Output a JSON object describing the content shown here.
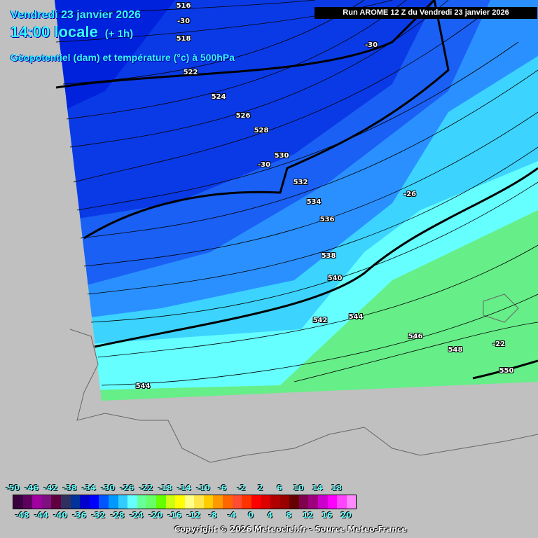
{
  "header": {
    "date": "Vendredi 23 janvier 2026",
    "time": "14:00 locale",
    "offset": "(+ 1h)",
    "parameter": "Géopotentiel (dam) et température (°c) à 500hPa",
    "run": "Run AROME 12 Z du Vendredi 23 janvier 2026"
  },
  "contour_labels": [
    "516",
    "518",
    "522",
    "524",
    "526",
    "528",
    "530",
    "532",
    "534",
    "536",
    "538",
    "540",
    "542",
    "544",
    "544",
    "546",
    "548",
    "550"
  ],
  "temp_labels": [
    "-30",
    "-30",
    "-30",
    "-26",
    "-22"
  ],
  "legend": {
    "top_labels": [
      "-50",
      "-46",
      "-42",
      "-38",
      "-34",
      "-30",
      "-26",
      "-22",
      "-18",
      "-14",
      "-10",
      "-6",
      "-2",
      "2",
      "6",
      "10",
      "14",
      "18"
    ],
    "bottom_labels": [
      "-48",
      "-44",
      "-40",
      "-36",
      "-32",
      "-28",
      "-24",
      "-20",
      "-16",
      "-12",
      "-8",
      "-4",
      "0",
      "4",
      "8",
      "12",
      "16",
      "20"
    ],
    "colors": [
      "#3a0040",
      "#5e005e",
      "#a000a0",
      "#7f107f",
      "#600040",
      "#303060",
      "#003399",
      "#0000cc",
      "#0000ff",
      "#0055ff",
      "#0099ff",
      "#33ccff",
      "#66ffff",
      "#66ff99",
      "#66ff66",
      "#66ff00",
      "#ccff11",
      "#ffff00",
      "#ffff88",
      "#ffe64c",
      "#ffcc00",
      "#ff9900",
      "#ff6600",
      "#ff4c33",
      "#ff3300",
      "#ff0000",
      "#dd0000",
      "#b00000",
      "#990000",
      "#660000",
      "#800050",
      "#a00080",
      "#cc00cc",
      "#ff00ff",
      "#ff44ff",
      "#ff88ff"
    ]
  },
  "copyright": "Copyright © 2026 Meteociel.fr - Source Meteo-France"
}
